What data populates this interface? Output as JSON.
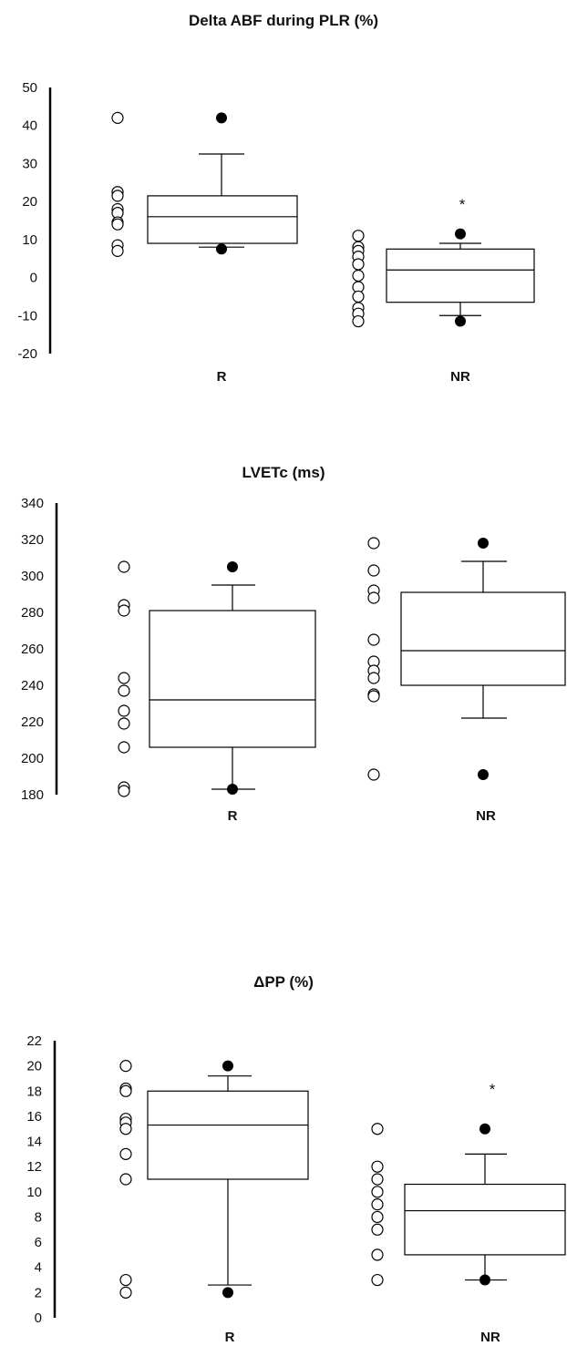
{
  "chart_data": [
    {
      "type": "box",
      "title": "Delta ABF during PLR (%)",
      "xlabel": "",
      "ylabel": "",
      "ylim": [
        -20,
        50
      ],
      "yticks": [
        -20,
        -10,
        0,
        10,
        20,
        30,
        40,
        50
      ],
      "categories": [
        "R",
        "NR"
      ],
      "boxes": [
        {
          "name": "R",
          "whisker_low": 8,
          "q1": 9,
          "median": 16,
          "q3": 21.5,
          "whisker_high": 32.5,
          "extremes": [
            7.5,
            42
          ],
          "points": [
            42,
            22.5,
            21.5,
            18,
            17,
            14.5,
            14,
            8.5,
            7
          ],
          "annotation": ""
        },
        {
          "name": "NR",
          "whisker_low": -10,
          "q1": -6.5,
          "median": 2,
          "q3": 7.5,
          "whisker_high": 9,
          "extremes": [
            -11.5,
            11.5
          ],
          "points": [
            11,
            8,
            7,
            5.5,
            3.5,
            0.5,
            -2.5,
            -5,
            -8,
            -9.5,
            -11.5
          ],
          "annotation": "*"
        }
      ]
    },
    {
      "type": "box",
      "title": "LVETc (ms)",
      "xlabel": "",
      "ylabel": "",
      "ylim": [
        180,
        340
      ],
      "yticks": [
        180,
        200,
        220,
        240,
        260,
        280,
        300,
        320,
        340
      ],
      "categories": [
        "R",
        "NR"
      ],
      "boxes": [
        {
          "name": "R",
          "whisker_low": 183,
          "q1": 206,
          "median": 232,
          "q3": 281,
          "whisker_high": 295,
          "extremes": [
            183,
            305
          ],
          "points": [
            305,
            284,
            281,
            244,
            237,
            226,
            219,
            206,
            184,
            182
          ],
          "annotation": ""
        },
        {
          "name": "NR",
          "whisker_low": 222,
          "q1": 240,
          "median": 259,
          "q3": 291,
          "whisker_high": 308,
          "extremes": [
            191,
            318
          ],
          "points": [
            318,
            303,
            292,
            288,
            265,
            253,
            248,
            244,
            235,
            234,
            191
          ],
          "annotation": ""
        }
      ]
    },
    {
      "type": "box",
      "title": "ΔPP (%)",
      "xlabel": "",
      "ylabel": "",
      "ylim": [
        0,
        22
      ],
      "yticks": [
        0,
        2,
        4,
        6,
        8,
        10,
        12,
        14,
        16,
        18,
        20,
        22
      ],
      "categories": [
        "R",
        "NR"
      ],
      "boxes": [
        {
          "name": "R",
          "whisker_low": 2.6,
          "q1": 11,
          "median": 15.3,
          "q3": 18,
          "whisker_high": 19.2,
          "extremes": [
            2,
            20
          ],
          "points": [
            20,
            18.2,
            18,
            15.8,
            15.5,
            15,
            13,
            11,
            3,
            2
          ],
          "annotation": ""
        },
        {
          "name": "NR",
          "whisker_low": 3,
          "q1": 5,
          "median": 8.5,
          "q3": 10.6,
          "whisker_high": 13,
          "extremes": [
            3,
            15
          ],
          "points": [
            15,
            12,
            11,
            10,
            9,
            8,
            7,
            5,
            3
          ],
          "annotation": "*"
        }
      ]
    }
  ]
}
